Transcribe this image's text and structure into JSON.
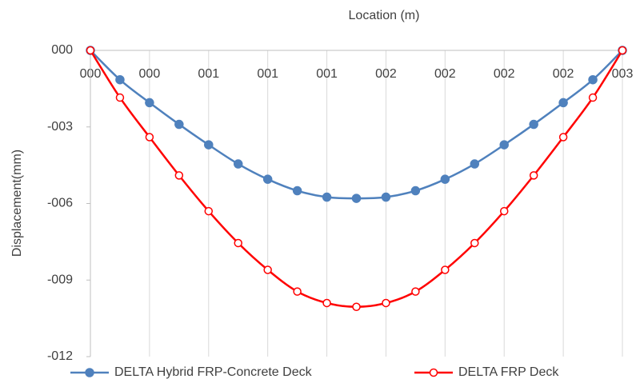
{
  "chart_data": {
    "type": "line",
    "title": "Location (m)",
    "y_label": "Displacement(mm)",
    "x": [
      0,
      0.15,
      0.3,
      0.45,
      0.6,
      0.75,
      0.9,
      1.05,
      1.2,
      1.35,
      1.5,
      1.65,
      1.8,
      1.95,
      2.1,
      2.25,
      2.4,
      2.55,
      2.7
    ],
    "series": [
      {
        "name": "DELTA Hybrid FRP-Concrete Deck",
        "color": "#4f81bd",
        "marker": "filled",
        "values": [
          0,
          -1.15,
          -2.05,
          -2.9,
          -3.7,
          -4.45,
          -5.05,
          -5.5,
          -5.75,
          -5.8,
          -5.75,
          -5.5,
          -5.05,
          -4.45,
          -3.7,
          -2.9,
          -2.05,
          -1.15,
          0
        ]
      },
      {
        "name": "DELTA FRP Deck",
        "color": "#ff0000",
        "marker": "hollow",
        "values": [
          0,
          -1.85,
          -3.4,
          -4.9,
          -6.3,
          -7.55,
          -8.6,
          -9.45,
          -9.9,
          -10.05,
          -9.9,
          -9.45,
          -8.6,
          -7.55,
          -6.3,
          -4.9,
          -3.4,
          -1.85,
          0
        ]
      }
    ],
    "xlim": [
      0,
      2.7
    ],
    "ylim": [
      -12,
      0
    ],
    "xticks": [
      {
        "value": 0,
        "label": "000"
      },
      {
        "value": 0.3,
        "label": "000"
      },
      {
        "value": 0.6,
        "label": "001"
      },
      {
        "value": 0.9,
        "label": "001"
      },
      {
        "value": 1.2,
        "label": "001"
      },
      {
        "value": 1.5,
        "label": "002"
      },
      {
        "value": 1.8,
        "label": "002"
      },
      {
        "value": 2.1,
        "label": "002"
      },
      {
        "value": 2.4,
        "label": "002"
      },
      {
        "value": 2.7,
        "label": "003"
      }
    ],
    "yticks": [
      {
        "value": 0,
        "label": "000"
      },
      {
        "value": -3,
        "label": "-003"
      },
      {
        "value": -6,
        "label": "-006"
      },
      {
        "value": -9,
        "label": "-009"
      },
      {
        "value": -12,
        "label": "-012"
      }
    ],
    "grid": "x",
    "legend": "bottom"
  }
}
